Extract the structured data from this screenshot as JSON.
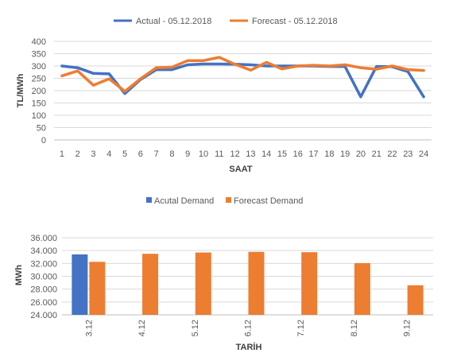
{
  "chart_data": [
    {
      "type": "line",
      "title": "",
      "xlabel": "SAAT",
      "ylabel": "TL/MWh",
      "ylim": [
        0,
        400
      ],
      "yticks": [
        "0",
        "50",
        "100",
        "150",
        "200",
        "250",
        "300",
        "350",
        "400"
      ],
      "grid": true,
      "legend_position": "top",
      "x": [
        "1",
        "2",
        "3",
        "4",
        "5",
        "6",
        "7",
        "8",
        "9",
        "10",
        "11",
        "12",
        "13",
        "14",
        "15",
        "16",
        "17",
        "18",
        "19",
        "20",
        "21",
        "22",
        "23",
        "24"
      ],
      "series": [
        {
          "name": "Actual - 05.12.2018",
          "color": "#4472c4",
          "values": [
            300,
            293,
            270,
            268,
            188,
            245,
            285,
            285,
            305,
            308,
            308,
            307,
            305,
            300,
            300,
            300,
            300,
            298,
            298,
            175,
            298,
            297,
            277,
            175
          ]
        },
        {
          "name": "Forecast - 05.12.2018",
          "color": "#ed7d31",
          "values": [
            260,
            280,
            222,
            248,
            197,
            248,
            293,
            295,
            322,
            322,
            335,
            307,
            283,
            315,
            288,
            300,
            303,
            300,
            305,
            293,
            287,
            300,
            285,
            282
          ]
        }
      ]
    },
    {
      "type": "bar",
      "title": "",
      "xlabel": "TARİH",
      "ylabel": "MWh",
      "ylim": [
        24000,
        36000
      ],
      "yticks": [
        "24.000",
        "26.000",
        "28.000",
        "30.000",
        "32.000",
        "34.000",
        "36.000"
      ],
      "grid": true,
      "legend_position": "top",
      "categories": [
        "3.12",
        "4.12",
        "5.12",
        "6.12",
        "7.12",
        "8.12",
        "9.12"
      ],
      "series": [
        {
          "name": "Acutal Demand",
          "color": "#4472c4",
          "values": [
            33400,
            null,
            null,
            null,
            null,
            null,
            null
          ]
        },
        {
          "name": "Forecast Demand",
          "color": "#ed7d31",
          "values": [
            32250,
            33500,
            33700,
            33800,
            33750,
            32050,
            28600
          ]
        }
      ]
    }
  ]
}
